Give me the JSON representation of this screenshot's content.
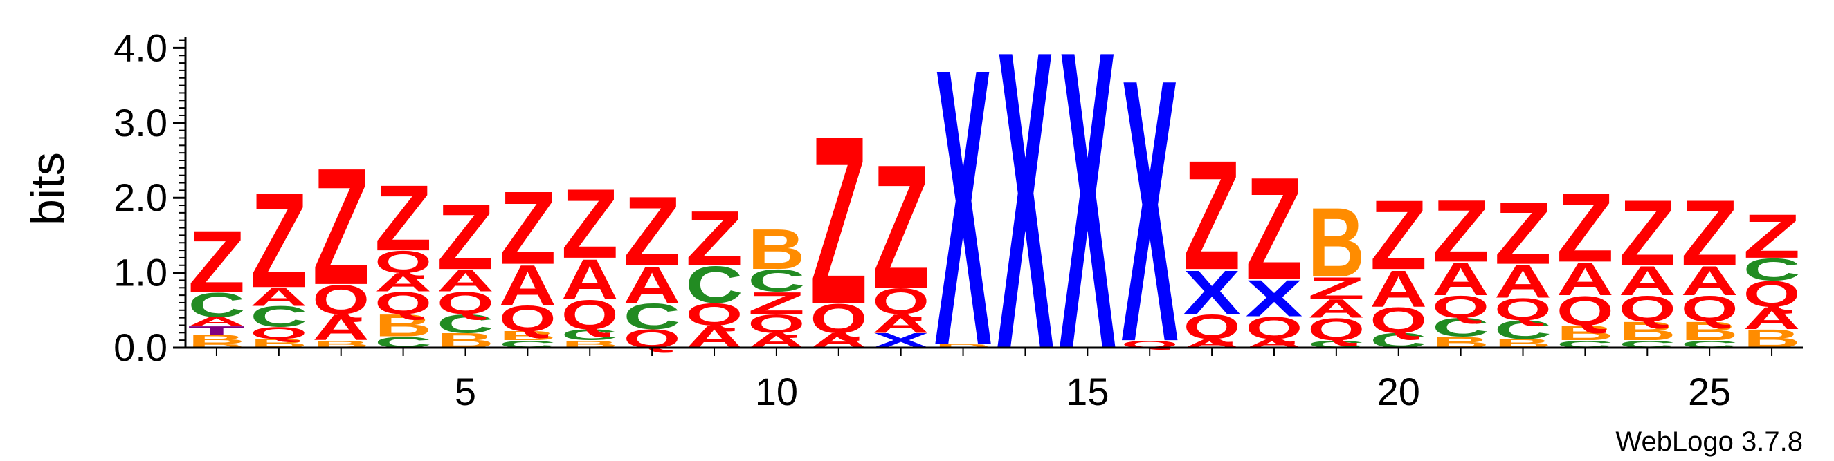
{
  "chart_data": {
    "type": "sequence-logo",
    "ylabel": "bits",
    "ylim": [
      0,
      4.15
    ],
    "y_ticks": [
      "0.0",
      "1.0",
      "2.0",
      "3.0",
      "4.0"
    ],
    "x_ticks": [
      "5",
      "10",
      "15",
      "20",
      "25"
    ],
    "footer": "WebLogo 3.7.8",
    "colors": {
      "Z": "#ff0000",
      "Q": "#ff0000",
      "A": "#ff0000",
      "X": "#0000ff",
      "C": "#228b22",
      "B": "#ff8c00",
      "T": "#800080"
    },
    "positions": [
      {
        "pos": 1,
        "stack": [
          [
            "B",
            0.05
          ],
          [
            "B",
            0.12
          ],
          [
            "T",
            0.12
          ],
          [
            "A",
            0.12
          ],
          [
            "C",
            0.33
          ],
          [
            "Z",
            0.85
          ]
        ]
      },
      {
        "pos": 2,
        "stack": [
          [
            "B",
            0.12
          ],
          [
            "Q",
            0.16
          ],
          [
            "C",
            0.28
          ],
          [
            "A",
            0.25
          ],
          [
            "Z",
            1.3
          ]
        ]
      },
      {
        "pos": 3,
        "stack": [
          [
            "B",
            0.1
          ],
          [
            "A",
            0.35
          ],
          [
            "Q",
            0.4
          ],
          [
            "Z",
            1.6
          ]
        ]
      },
      {
        "pos": 4,
        "stack": [
          [
            "C",
            0.15
          ],
          [
            "B",
            0.3
          ],
          [
            "Q",
            0.3
          ],
          [
            "A",
            0.25
          ],
          [
            "Q",
            0.3
          ],
          [
            "Z",
            0.9
          ]
        ]
      },
      {
        "pos": 5,
        "stack": [
          [
            "B",
            0.2
          ],
          [
            "C",
            0.25
          ],
          [
            "Q",
            0.3
          ],
          [
            "A",
            0.3
          ],
          [
            "Z",
            0.9
          ]
        ]
      },
      {
        "pos": 6,
        "stack": [
          [
            "C",
            0.1
          ],
          [
            "B",
            0.12
          ],
          [
            "Q",
            0.35
          ],
          [
            "A",
            0.55
          ],
          [
            "Z",
            1.0
          ]
        ]
      },
      {
        "pos": 7,
        "stack": [
          [
            "B",
            0.1
          ],
          [
            "C",
            0.15
          ],
          [
            "Q",
            0.4
          ],
          [
            "A",
            0.55
          ],
          [
            "Z",
            0.95
          ]
        ]
      },
      {
        "pos": 8,
        "stack": [
          [
            "Q",
            0.25
          ],
          [
            "C",
            0.35
          ],
          [
            "A",
            0.5
          ],
          [
            "Z",
            0.95
          ]
        ]
      },
      {
        "pos": 9,
        "stack": [
          [
            "A",
            0.3
          ],
          [
            "Q",
            0.3
          ],
          [
            "C",
            0.5
          ],
          [
            "Z",
            0.75
          ]
        ]
      },
      {
        "pos": 10,
        "stack": [
          [
            "A",
            0.2
          ],
          [
            "Q",
            0.25
          ],
          [
            "Z",
            0.3
          ],
          [
            "C",
            0.3
          ],
          [
            "B",
            0.55
          ]
        ]
      },
      {
        "pos": 11,
        "stack": [
          [
            "A",
            0.2
          ],
          [
            "Q",
            0.4
          ],
          [
            "Z",
            2.3
          ]
        ]
      },
      {
        "pos": 12,
        "stack": [
          [
            "X",
            0.2
          ],
          [
            "A",
            0.25
          ],
          [
            "Q",
            0.35
          ],
          [
            "Z",
            1.7
          ]
        ]
      },
      {
        "pos": 13,
        "stack": [
          [
            "B",
            0.05
          ],
          [
            "X",
            3.8
          ]
        ]
      },
      {
        "pos": 14,
        "stack": [
          [
            "X",
            4.1
          ]
        ]
      },
      {
        "pos": 15,
        "stack": [
          [
            "X",
            4.1
          ]
        ]
      },
      {
        "pos": 16,
        "stack": [
          [
            "Q",
            0.1
          ],
          [
            "X",
            3.6
          ]
        ]
      },
      {
        "pos": 17,
        "stack": [
          [
            "A",
            0.12
          ],
          [
            "Q",
            0.33
          ],
          [
            "X",
            0.6
          ],
          [
            "Z",
            1.5
          ]
        ]
      },
      {
        "pos": 18,
        "stack": [
          [
            "A",
            0.12
          ],
          [
            "Q",
            0.3
          ],
          [
            "X",
            0.5
          ],
          [
            "Z",
            1.4
          ]
        ]
      },
      {
        "pos": 19,
        "stack": [
          [
            "C",
            0.1
          ],
          [
            "Q",
            0.3
          ],
          [
            "A",
            0.25
          ],
          [
            "Z",
            0.3
          ],
          [
            "B",
            0.95
          ]
        ]
      },
      {
        "pos": 20,
        "stack": [
          [
            "C",
            0.2
          ],
          [
            "Q",
            0.35
          ],
          [
            "A",
            0.5
          ],
          [
            "Z",
            0.95
          ]
        ]
      },
      {
        "pos": 21,
        "stack": [
          [
            "B",
            0.15
          ],
          [
            "C",
            0.25
          ],
          [
            "Q",
            0.3
          ],
          [
            "A",
            0.45
          ],
          [
            "Z",
            0.85
          ]
        ]
      },
      {
        "pos": 22,
        "stack": [
          [
            "B",
            0.12
          ],
          [
            "C",
            0.25
          ],
          [
            "Q",
            0.3
          ],
          [
            "A",
            0.45
          ],
          [
            "Z",
            0.85
          ]
        ]
      },
      {
        "pos": 23,
        "stack": [
          [
            "C",
            0.1
          ],
          [
            "B",
            0.2
          ],
          [
            "Q",
            0.4
          ],
          [
            "A",
            0.45
          ],
          [
            "Z",
            0.95
          ]
        ]
      },
      {
        "pos": 24,
        "stack": [
          [
            "C",
            0.1
          ],
          [
            "B",
            0.25
          ],
          [
            "Q",
            0.35
          ],
          [
            "A",
            0.4
          ],
          [
            "Z",
            0.9
          ]
        ]
      },
      {
        "pos": 25,
        "stack": [
          [
            "C",
            0.1
          ],
          [
            "B",
            0.25
          ],
          [
            "Q",
            0.35
          ],
          [
            "A",
            0.4
          ],
          [
            "Z",
            0.9
          ]
        ]
      },
      {
        "pos": 26,
        "stack": [
          [
            "B",
            0.25
          ],
          [
            "A",
            0.3
          ],
          [
            "Q",
            0.35
          ],
          [
            "C",
            0.3
          ],
          [
            "Z",
            0.6
          ]
        ]
      }
    ]
  }
}
